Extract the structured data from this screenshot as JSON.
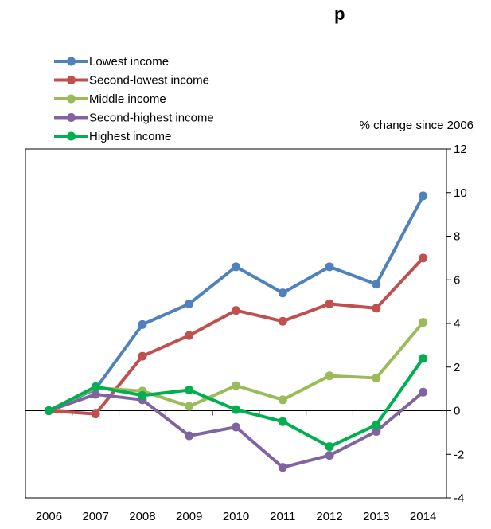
{
  "chart_data": {
    "type": "line",
    "title": "p",
    "ylabel": "% change since 2006",
    "xlabel": "",
    "x": [
      "2006",
      "2007",
      "2008",
      "2009",
      "2010",
      "2011",
      "2012",
      "2013",
      "2014"
    ],
    "ylim": [
      -4,
      12
    ],
    "yticks": [
      -4,
      -2,
      0,
      2,
      4,
      6,
      8,
      10,
      12
    ],
    "y_axis_side": "right",
    "grid": false,
    "legend_position": "top-left",
    "series": [
      {
        "name": "Lowest income",
        "color": "#4F81BD",
        "values": [
          0,
          1.0,
          3.95,
          4.9,
          6.6,
          5.4,
          6.6,
          5.8,
          9.85
        ]
      },
      {
        "name": "Second-lowest income",
        "color": "#C0504D",
        "values": [
          0,
          -0.15,
          2.5,
          3.45,
          4.6,
          4.1,
          4.9,
          4.7,
          7.0
        ]
      },
      {
        "name": "Middle income",
        "color": "#9BBB59",
        "values": [
          0,
          1.05,
          0.9,
          0.2,
          1.15,
          0.5,
          1.6,
          1.5,
          4.05
        ]
      },
      {
        "name": "Second-highest income",
        "color": "#8064A2",
        "values": [
          0,
          0.75,
          0.5,
          -1.15,
          -0.75,
          -2.6,
          -2.05,
          -0.95,
          0.85
        ]
      },
      {
        "name": "Highest income",
        "color": "#00B050",
        "values": [
          0,
          1.1,
          0.7,
          0.95,
          0.05,
          -0.5,
          -1.65,
          -0.65,
          2.4
        ]
      }
    ]
  }
}
